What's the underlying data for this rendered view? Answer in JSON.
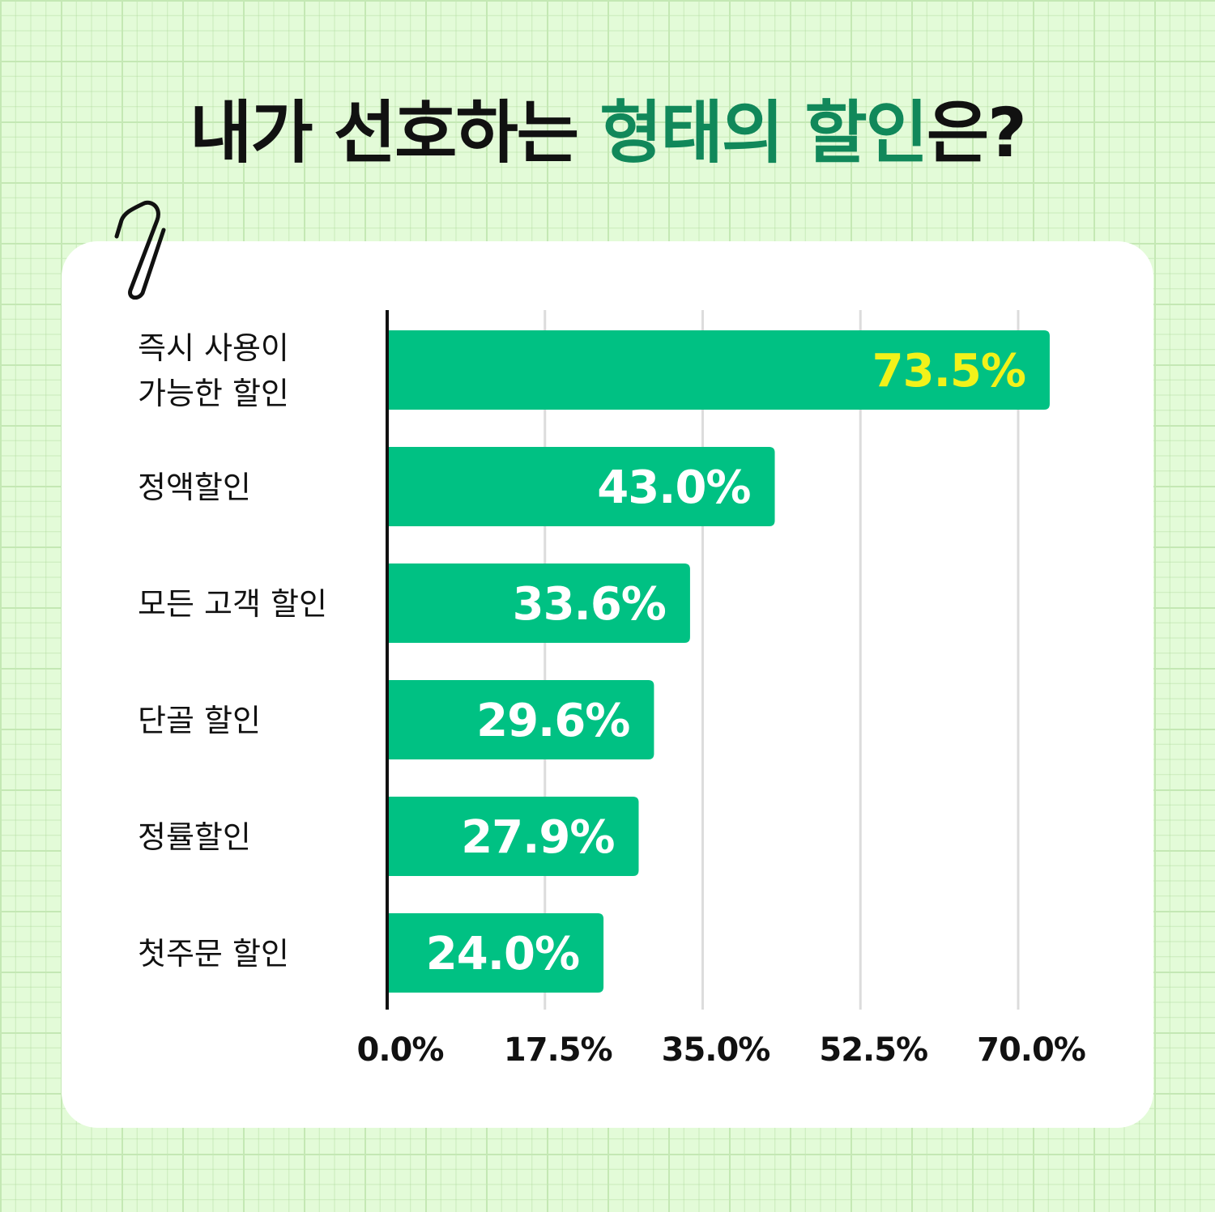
{
  "title": {
    "prefix": "내가 선호하는 ",
    "accent": "형태의 할인",
    "suffix": "은?"
  },
  "colors": {
    "bar": "#00c183",
    "highlight_label": "#f2f21a",
    "value_label": "#ffffff",
    "title_accent": "#11885a",
    "axis": "#111111",
    "grid": "#dcdcdc"
  },
  "icons": {
    "clip": "paperclip-icon"
  },
  "chart_data": {
    "type": "bar",
    "orientation": "horizontal",
    "title": "내가 선호하는 형태의 할인은?",
    "categories": [
      [
        "즉시 사용이",
        "가능한 할인"
      ],
      [
        "정액할인"
      ],
      [
        "모든 고객 할인"
      ],
      [
        "단골 할인"
      ],
      [
        "정률할인"
      ],
      [
        "첫주문 할인"
      ]
    ],
    "values": [
      73.5,
      43.0,
      33.6,
      29.6,
      27.9,
      24.0
    ],
    "value_labels": [
      "73.5%",
      "43.0%",
      "33.6%",
      "29.6%",
      "27.9%",
      "24.0%"
    ],
    "highlight_index": 0,
    "x_ticks": [
      0,
      17.5,
      35,
      52.5,
      70
    ],
    "x_tick_labels": [
      "0.0%",
      "17.5%",
      "35.0%",
      "52.5%",
      "70.0%"
    ],
    "xlim": [
      0,
      70
    ],
    "grid": true,
    "legend": "none"
  }
}
